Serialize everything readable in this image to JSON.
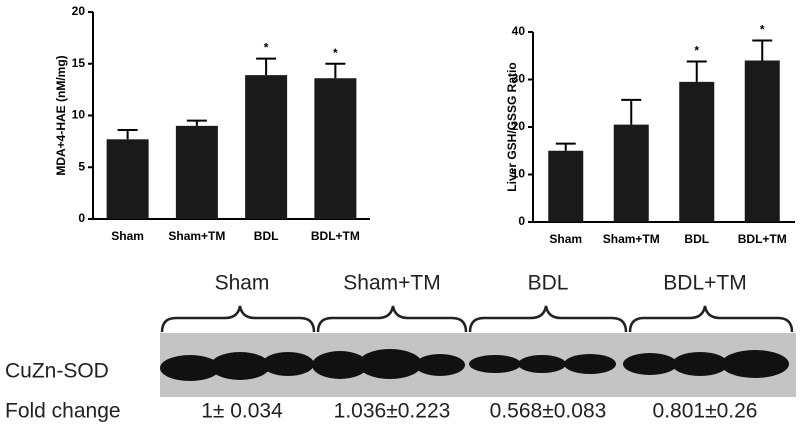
{
  "chart_data": [
    {
      "type": "bar",
      "ylabel": "MDA+4-HAE (nM/mg)",
      "categories": [
        "Sham",
        "Sham+TM",
        "BDL",
        "BDL+TM"
      ],
      "values": [
        7.7,
        9.0,
        13.9,
        13.6
      ],
      "errors": [
        0.9,
        0.5,
        1.6,
        1.4
      ],
      "annotations": [
        null,
        null,
        "*",
        "*"
      ],
      "color": "#1a1a1a",
      "ylim": [
        0,
        20
      ],
      "yticks": [
        0,
        5,
        10,
        15,
        20
      ]
    },
    {
      "type": "bar",
      "ylabel": "Liver GSH/GSSG Ratio",
      "categories": [
        "Sham",
        "Sham+TM",
        "BDL",
        "BDL+TM"
      ],
      "values": [
        15,
        20.5,
        29.5,
        34
      ],
      "errors": [
        1.5,
        5.2,
        4.3,
        4.2
      ],
      "annotations": [
        null,
        null,
        "*",
        "*"
      ],
      "color": "#1a1a1a",
      "ylim": [
        0,
        40
      ],
      "yticks": [
        0,
        10,
        20,
        30,
        40
      ]
    }
  ],
  "blot": {
    "groups": [
      "Sham",
      "Sham+TM",
      "BDL",
      "BDL+TM"
    ],
    "protein": "CuZn-SOD",
    "fold_label": "Fold change",
    "fold_changes": [
      "1± 0.034",
      "1.036±0.223",
      "0.568±0.083",
      "0.801±0.26"
    ]
  }
}
